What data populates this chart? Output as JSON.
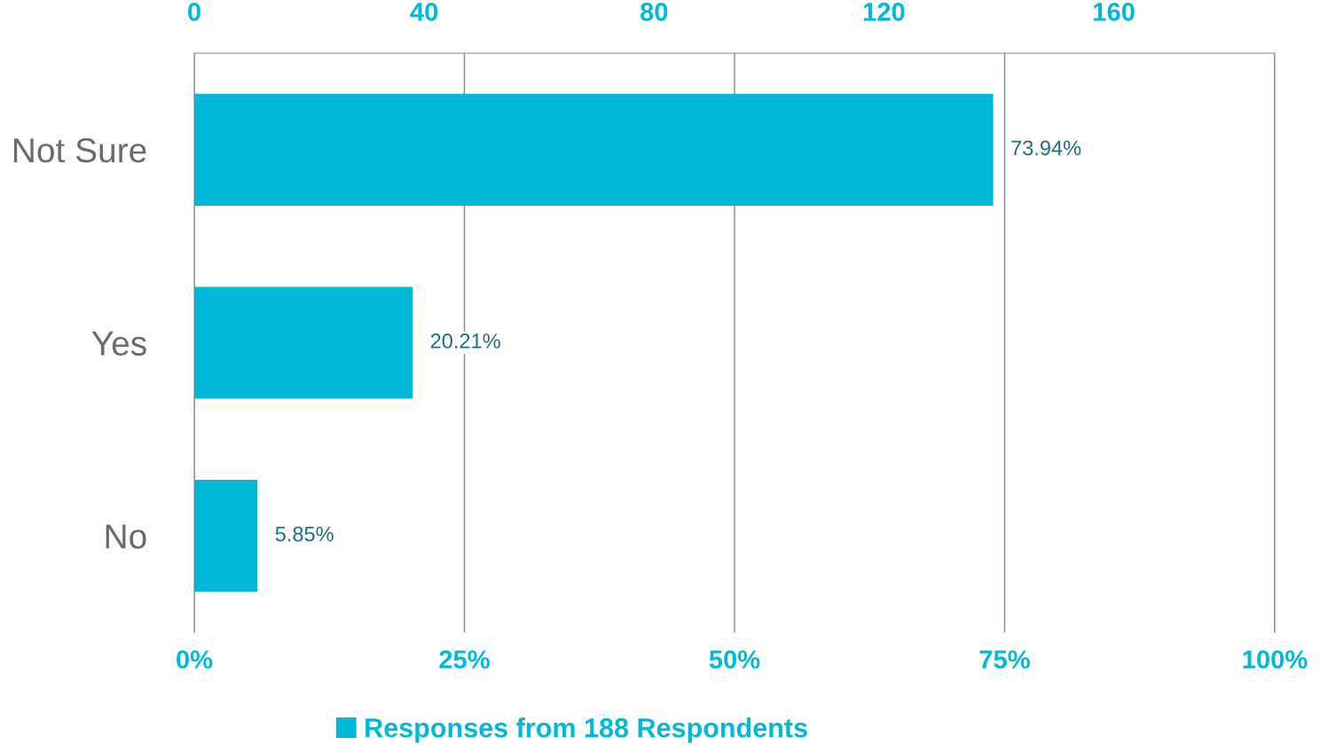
{
  "chart_data": {
    "type": "bar",
    "orientation": "horizontal",
    "categories": [
      "Not Sure",
      "Yes",
      "No"
    ],
    "series": [
      {
        "name": "Responses from 188 Respondents",
        "color": "#00b8d8",
        "values": [
          73.94,
          20.21,
          5.85
        ],
        "value_labels": [
          "73.94%",
          "20.21%",
          "5.85%"
        ]
      }
    ],
    "xlim": [
      0,
      100
    ],
    "xticks": [
      {
        "value": 0,
        "label": "0%"
      },
      {
        "value": 25,
        "label": "25%"
      },
      {
        "value": 50,
        "label": "50%"
      },
      {
        "value": 75,
        "label": "75%"
      },
      {
        "value": 100,
        "label": "100%"
      }
    ],
    "x2lim": [
      0,
      188
    ],
    "x2ticks": [
      0,
      40,
      80,
      120,
      160
    ],
    "grid": "x",
    "legend": "bottom"
  }
}
